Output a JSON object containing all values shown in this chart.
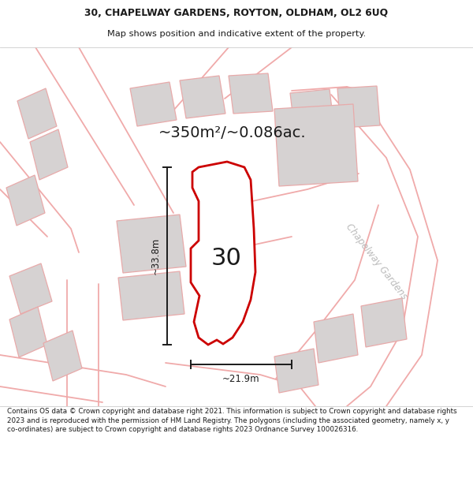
{
  "title_line1": "30, CHAPELWAY GARDENS, ROYTON, OLDHAM, OL2 6UQ",
  "title_line2": "Map shows position and indicative extent of the property.",
  "area_label": "~350m²/~0.086ac.",
  "property_number": "30",
  "dim_vertical": "~33.8m",
  "dim_horizontal": "~21.9m",
  "street_label": "Chapelway Gardens",
  "footer_text": "Contains OS data © Crown copyright and database right 2021. This information is subject to Crown copyright and database rights 2023 and is reproduced with the permission of HM Land Registry. The polygons (including the associated geometry, namely x, y co-ordinates) are subject to Crown copyright and database rights 2023 Ordnance Survey 100026316.",
  "map_bg": "#f7f3f3",
  "building_color": "#d6d2d2",
  "building_edge": "#e8aaaa",
  "road_color": "#f0aaaa",
  "property_fill": "#ffffff",
  "property_edge": "#cc0000",
  "title_color": "#1a1a1a",
  "footer_color": "#1a1a1a",
  "street_label_color": "#bbbbbb",
  "dim_color": "#1a1a1a"
}
